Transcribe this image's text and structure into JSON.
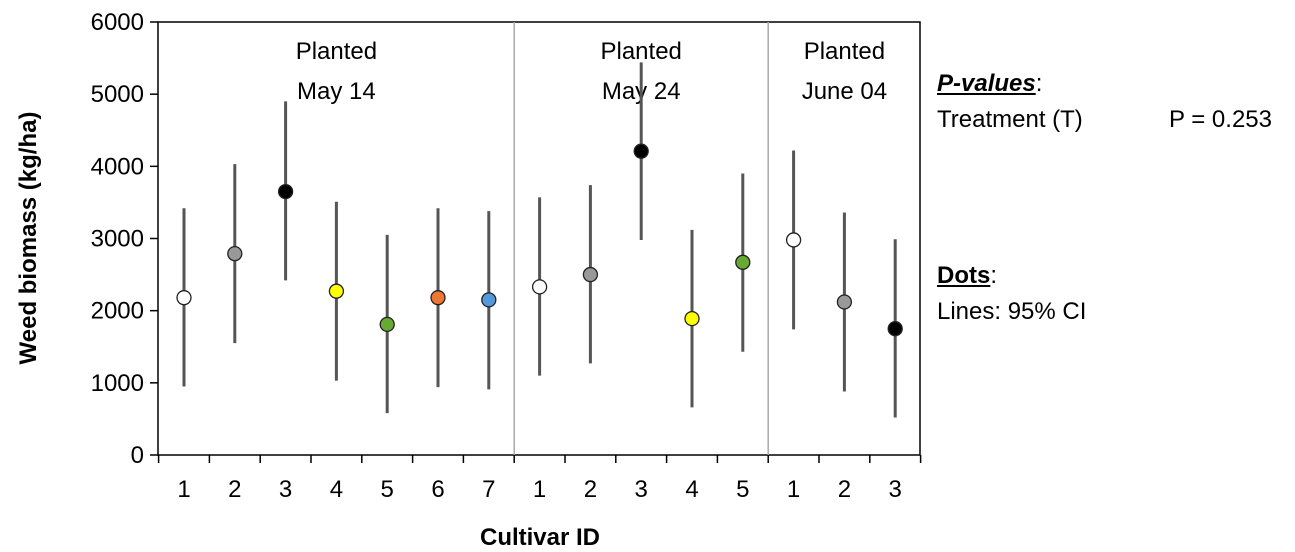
{
  "chart_data": {
    "type": "scatter",
    "ylabel": "Weed biomass (kg/ha)",
    "xlabel": "Cultivar ID",
    "ylim": [
      0,
      6000
    ],
    "yticks": [
      0,
      1000,
      2000,
      3000,
      4000,
      5000,
      6000
    ],
    "grid": false,
    "panels": [
      {
        "label_line1": "Planted",
        "label_line2": "May 14",
        "points": [
          {
            "cultivar": "1",
            "mean": 2180,
            "ci_low": 950,
            "ci_high": 3420,
            "color": "#ffffff"
          },
          {
            "cultivar": "2",
            "mean": 2790,
            "ci_low": 1550,
            "ci_high": 4030,
            "color": "#999999"
          },
          {
            "cultivar": "3",
            "mean": 3650,
            "ci_low": 2420,
            "ci_high": 4900,
            "color": "#000000"
          },
          {
            "cultivar": "4",
            "mean": 2270,
            "ci_low": 1030,
            "ci_high": 3510,
            "color": "#ffff00"
          },
          {
            "cultivar": "5",
            "mean": 1810,
            "ci_low": 580,
            "ci_high": 3050,
            "color": "#66aa33"
          },
          {
            "cultivar": "6",
            "mean": 2180,
            "ci_low": 940,
            "ci_high": 3420,
            "color": "#ee7733"
          },
          {
            "cultivar": "7",
            "mean": 2150,
            "ci_low": 910,
            "ci_high": 3380,
            "color": "#5599dd"
          }
        ]
      },
      {
        "label_line1": "Planted",
        "label_line2": "May 24",
        "points": [
          {
            "cultivar": "1",
            "mean": 2330,
            "ci_low": 1100,
            "ci_high": 3570,
            "color": "#ffffff"
          },
          {
            "cultivar": "2",
            "mean": 2500,
            "ci_low": 1270,
            "ci_high": 3740,
            "color": "#999999"
          },
          {
            "cultivar": "3",
            "mean": 4210,
            "ci_low": 2980,
            "ci_high": 5440,
            "color": "#000000"
          },
          {
            "cultivar": "4",
            "mean": 1890,
            "ci_low": 660,
            "ci_high": 3120,
            "color": "#ffff00"
          },
          {
            "cultivar": "5",
            "mean": 2670,
            "ci_low": 1430,
            "ci_high": 3900,
            "color": "#66aa33"
          }
        ]
      },
      {
        "label_line1": "Planted",
        "label_line2": "June 04",
        "points": [
          {
            "cultivar": "1",
            "mean": 2980,
            "ci_low": 1740,
            "ci_high": 4220,
            "color": "#ffffff"
          },
          {
            "cultivar": "2",
            "mean": 2120,
            "ci_low": 880,
            "ci_high": 3360,
            "color": "#999999"
          },
          {
            "cultivar": "3",
            "mean": 1750,
            "ci_low": 520,
            "ci_high": 2990,
            "color": "#000000"
          }
        ]
      }
    ]
  },
  "legend": {
    "pvalues_header": "P-values",
    "treatment_label": "Treatment (T)",
    "treatment_pvalue": "P = 0.253",
    "dots_header": "Dots",
    "lines_label": "Lines: 95% CI"
  }
}
